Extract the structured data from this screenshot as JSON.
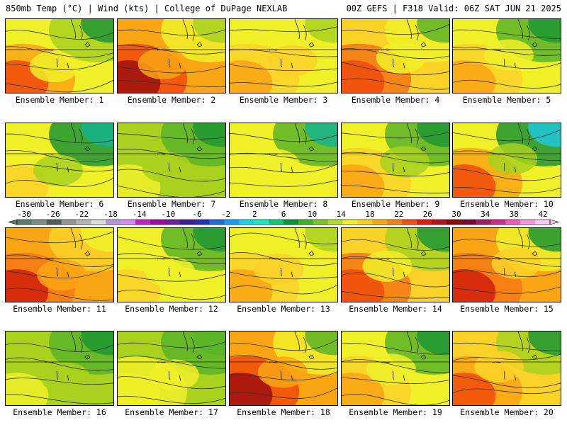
{
  "header": {
    "left": "850mb Temp (°C) | Wind (kts) | College of DuPage NEXLAB",
    "right": "00Z GEFS | F318 Valid: 06Z SAT JUN 21 2025"
  },
  "members": [
    {
      "label": "Ensemble Member: 1",
      "base": 16,
      "hot": 26,
      "cool": 8
    },
    {
      "label": "Ensemble Member: 2",
      "base": 20,
      "hot": 32,
      "cool": 12
    },
    {
      "label": "Ensemble Member: 3",
      "base": 16,
      "hot": 22,
      "cool": 13
    },
    {
      "label": "Ensemble Member: 4",
      "base": 18,
      "hot": 28,
      "cool": 10
    },
    {
      "label": "Ensemble Member: 5",
      "base": 16,
      "hot": 22,
      "cool": 6
    },
    {
      "label": "Ensemble Member: 6",
      "base": 14,
      "hot": 18,
      "cool": 2
    },
    {
      "label": "Ensemble Member: 7",
      "base": 12,
      "hot": 15,
      "cool": 6
    },
    {
      "label": "Ensemble Member: 8",
      "base": 14,
      "hot": 16,
      "cool": 4
    },
    {
      "label": "Ensemble Member: 9",
      "base": 14,
      "hot": 20,
      "cool": 6
    },
    {
      "label": "Ensemble Member: 10",
      "base": 14,
      "hot": 28,
      "cool": 1
    },
    {
      "label": "Ensemble Member: 11",
      "base": 20,
      "hot": 30,
      "cool": 14
    },
    {
      "label": "Ensemble Member: 12",
      "base": 14,
      "hot": 17,
      "cool": 6
    },
    {
      "label": "Ensemble Member: 13",
      "base": 16,
      "hot": 22,
      "cool": 12
    },
    {
      "label": "Ensemble Member: 14",
      "base": 18,
      "hot": 28,
      "cool": 8
    },
    {
      "label": "Ensemble Member: 15",
      "base": 20,
      "hot": 30,
      "cool": 8
    },
    {
      "label": "Ensemble Member: 16",
      "base": 12,
      "hot": 15,
      "cool": 7
    },
    {
      "label": "Ensemble Member: 17",
      "base": 13,
      "hot": 16,
      "cool": 9
    },
    {
      "label": "Ensemble Member: 18",
      "base": 22,
      "hot": 32,
      "cool": 10
    },
    {
      "label": "Ensemble Member: 19",
      "base": 16,
      "hot": 22,
      "cool": 6
    },
    {
      "label": "Ensemble Member: 20",
      "base": 18,
      "hot": 26,
      "cool": 6
    }
  ],
  "colorbar": {
    "tick_labels": [
      "-30",
      "-26",
      "-22",
      "-18",
      "-14",
      "-10",
      "-6",
      "-2",
      "2",
      "6",
      "10",
      "14",
      "18",
      "22",
      "26",
      "30",
      "34",
      "38",
      "42"
    ],
    "colors": [
      "#5f7a6e",
      "#7f8c82",
      "#4f5f55",
      "#969696",
      "#b4b4b4",
      "#dcdcdc",
      "#b496dc",
      "#dc8cf0",
      "#c81ec8",
      "#a00aa0",
      "#6e1e96",
      "#3a1e96",
      "#1e32b4",
      "#1e6edc",
      "#14a0f0",
      "#1ed2e6",
      "#1ee6be",
      "#14c878",
      "#0a9632",
      "#3cb428",
      "#78c828",
      "#b4dc28",
      "#f0f032",
      "#fad228",
      "#faaa14",
      "#f58214",
      "#f0500a",
      "#dc1e0a",
      "#b41414",
      "#8c0a0a",
      "#780a32",
      "#a01e64",
      "#d2288c",
      "#f05ab4",
      "#fa96dc",
      "#fac8f0"
    ]
  }
}
